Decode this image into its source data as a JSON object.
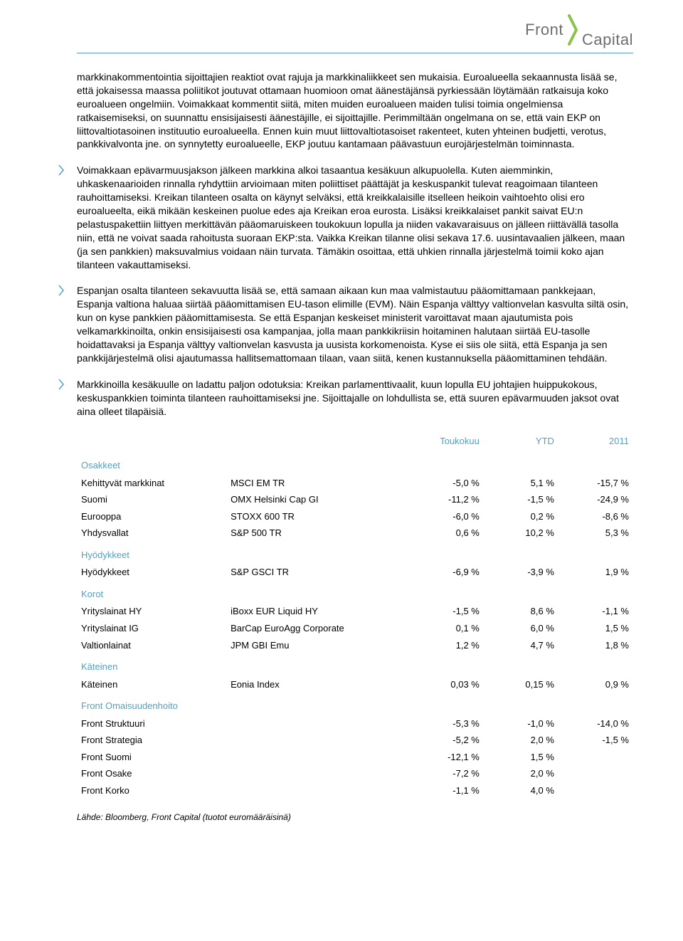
{
  "logo": {
    "front": "Front",
    "capital": "Capital"
  },
  "accent_color": "#4fa3c7",
  "text_color": "#000000",
  "logo_text_color": "#6d6e71",
  "paragraphs": {
    "p1": "markkinakommentointia sijoittajien reaktiot ovat rajuja ja markkinaliikkeet sen mukaisia. Euroalueella sekaannusta lisää se, että jokaisessa maassa poliitikot joutuvat ottamaan huomioon omat äänestäjänsä pyrkiessään löytämään ratkaisuja koko euroalueen ongelmiin. Voimakkaat kommentit siitä, miten muiden euroalueen maiden tulisi toimia ongelmiensa ratkaisemiseksi, on suunnattu ensisijaisesti äänestäjille, ei sijoittajille. Perimmiltään ongelmana on se, että vain EKP on liittovaltiotasoinen instituutio euroalueella. Ennen kuin muut liittovaltiotasoiset rakenteet, kuten yhteinen budjetti, verotus, pankkivalvonta jne. on synnytetty euroalueelle, EKP joutuu kantamaan päävastuun eurojärjestelmän toiminnasta.",
    "p2": "Voimakkaan epävarmuusjakson jälkeen markkina alkoi tasaantua kesäkuun alkupuolella. Kuten aiemminkin, uhkaskenaarioiden rinnalla ryhdyttiin arvioimaan miten poliittiset päättäjät ja keskuspankit tulevat reagoimaan tilanteen rauhoittamiseksi. Kreikan tilanteen osalta on käynyt selväksi, että kreikkalaisille itselleen heikoin vaihtoehto olisi ero euroalueelta, eikä mikään keskeinen puolue edes aja Kreikan eroa eurosta. Lisäksi kreikkalaiset pankit saivat EU:n pelastuspakettiin liittyen merkittävän pääomaruiskeen toukokuun lopulla ja niiden vakavaraisuus on jälleen riittävällä tasolla niin, että ne voivat saada rahoitusta suoraan EKP:sta. Vaikka Kreikan tilanne olisi sekava 17.6. uusintavaalien jälkeen, maan (ja sen pankkien) maksuvalmius voidaan näin turvata. Tämäkin osoittaa, että uhkien rinnalla järjestelmä toimii koko ajan tilanteen vakauttamiseksi.",
    "p3": "Espanjan osalta tilanteen sekavuutta lisää se, että samaan aikaan kun maa valmistautuu pääomittamaan pankkejaan, Espanja valtiona haluaa siirtää pääomittamisen EU-tason elimille (EVM). Näin Espanja välttyy valtionvelan kasvulta siltä osin, kun on kyse pankkien pääomittamisesta. Se että Espanjan keskeiset ministerit varoittavat maan ajautumista pois velkamarkkinoilta, onkin ensisijaisesti osa kampanjaa, jolla maan pankkikriisin hoitaminen halutaan siirtää EU-tasolle hoidattavaksi ja Espanja välttyy valtionvelan kasvusta ja uusista korkomenoista. Kyse ei siis ole siitä, että Espanja ja sen pankkijärjestelmä olisi ajautumassa hallitsemattomaan tilaan, vaan siitä, kenen kustannuksella pääomittaminen tehdään.",
    "p4": "Markkinoilla kesäkuulle on ladattu paljon odotuksia: Kreikan parlamenttivaalit, kuun lopulla EU johtajien huippukokous, keskuspankkien toiminta tilanteen rauhoittamiseksi jne. Sijoittajalle on lohdullista se, että suuren epävarmuuden jaksot ovat aina olleet tilapäisiä."
  },
  "table": {
    "headers": {
      "c3": "Toukokuu",
      "c4": "YTD",
      "c5": "2011"
    },
    "sections": [
      {
        "label": "Osakkeet",
        "rows": [
          {
            "name": "Kehittyvät markkinat",
            "index": "MSCI EM TR",
            "v1": "-5,0 %",
            "v2": "5,1 %",
            "v3": "-15,7 %"
          },
          {
            "name": "Suomi",
            "index": "OMX Helsinki Cap GI",
            "v1": "-11,2 %",
            "v2": "-1,5 %",
            "v3": "-24,9 %"
          },
          {
            "name": "Eurooppa",
            "index": "STOXX 600 TR",
            "v1": "-6,0 %",
            "v2": "0,2 %",
            "v3": "-8,6 %"
          },
          {
            "name": "Yhdysvallat",
            "index": "S&P 500 TR",
            "v1": "0,6 %",
            "v2": "10,2 %",
            "v3": "5,3 %"
          }
        ]
      },
      {
        "label": "Hyödykkeet",
        "rows": [
          {
            "name": "Hyödykkeet",
            "index": "S&P GSCI TR",
            "v1": "-6,9 %",
            "v2": "-3,9 %",
            "v3": "1,9 %"
          }
        ]
      },
      {
        "label": "Korot",
        "rows": [
          {
            "name": "Yrityslainat HY",
            "index": "iBoxx EUR Liquid HY",
            "v1": "-1,5 %",
            "v2": "8,6 %",
            "v3": "-1,1 %"
          },
          {
            "name": "Yrityslainat IG",
            "index": "BarCap EuroAgg Corporate",
            "v1": "0,1 %",
            "v2": "6,0 %",
            "v3": "1,5 %"
          },
          {
            "name": "Valtionlainat",
            "index": "JPM GBI Emu",
            "v1": "1,2 %",
            "v2": "4,7 %",
            "v3": "1,8 %"
          }
        ]
      },
      {
        "label": "Käteinen",
        "rows": [
          {
            "name": "Käteinen",
            "index": "Eonia Index",
            "v1": "0,03 %",
            "v2": "0,15 %",
            "v3": "0,9 %"
          }
        ]
      },
      {
        "label": "Front Omaisuudenhoito",
        "rows": [
          {
            "name": "Front Struktuuri",
            "index": "",
            "v1": "-5,3 %",
            "v2": "-1,0 %",
            "v3": "-14,0 %"
          },
          {
            "name": "Front Strategia",
            "index": "",
            "v1": "-5,2 %",
            "v2": "2,0 %",
            "v3": "-1,5 %"
          },
          {
            "name": "Front Suomi",
            "index": "",
            "v1": "-12,1 %",
            "v2": "1,5 %",
            "v3": ""
          },
          {
            "name": "Front Osake",
            "index": "",
            "v1": "-7,2 %",
            "v2": "2,0 %",
            "v3": ""
          },
          {
            "name": "Front Korko",
            "index": "",
            "v1": "-1,1 %",
            "v2": "4,0 %",
            "v3": ""
          }
        ]
      }
    ]
  },
  "source": "Lähde: Bloomberg, Front Capital (tuotot euromääräisinä)"
}
